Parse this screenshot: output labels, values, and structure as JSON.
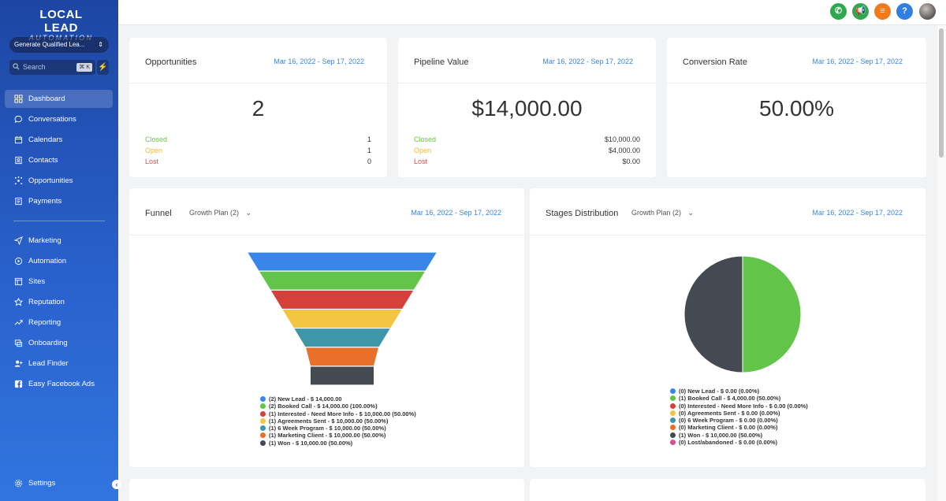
{
  "brand": {
    "line1": "LOCAL LEAD",
    "line2": "AUTOMATION"
  },
  "account": {
    "name": "Generate Qualified Lea..."
  },
  "search": {
    "placeholder": "Search",
    "shortcut": "⌘ K"
  },
  "nav": {
    "items": [
      {
        "label": "Dashboard",
        "icon": "grid-icon",
        "active": true
      },
      {
        "label": "Conversations",
        "icon": "chat-icon"
      },
      {
        "label": "Calendars",
        "icon": "calendar-icon"
      },
      {
        "label": "Contacts",
        "icon": "contacts-icon"
      },
      {
        "label": "Opportunities",
        "icon": "opportunities-icon"
      },
      {
        "label": "Payments",
        "icon": "payments-icon"
      },
      {
        "label": "Marketing",
        "icon": "send-icon"
      },
      {
        "label": "Automation",
        "icon": "automation-icon"
      },
      {
        "label": "Sites",
        "icon": "sites-icon"
      },
      {
        "label": "Reputation",
        "icon": "star-icon"
      },
      {
        "label": "Reporting",
        "icon": "trend-icon"
      },
      {
        "label": "Onboarding",
        "icon": "onboarding-icon"
      },
      {
        "label": "Lead Finder",
        "icon": "add-user-icon"
      },
      {
        "label": "Easy Facebook Ads",
        "icon": "facebook-icon"
      }
    ],
    "settings": "Settings"
  },
  "header": {
    "buttons": [
      {
        "name": "phone-icon",
        "color": "#2fa84f",
        "glyph": "✆"
      },
      {
        "name": "megaphone-icon",
        "color": "#2fa84f",
        "glyph": "📢"
      },
      {
        "name": "task-list-icon",
        "color": "#f27a1a",
        "glyph": "≡"
      },
      {
        "name": "help-icon",
        "color": "#2f7fe0",
        "glyph": "?"
      }
    ]
  },
  "opportunities": {
    "title": "Opportunities",
    "date": "Mar 16, 2022 - Sep 17, 2022",
    "value": "2",
    "rows": [
      {
        "label": "Closed",
        "value": "1",
        "color": "#6cc644"
      },
      {
        "label": "Open",
        "value": "1",
        "color": "#f2b829"
      },
      {
        "label": "Lost",
        "value": "0",
        "color": "#d9534f"
      }
    ]
  },
  "pipeline": {
    "title": "Pipeline Value",
    "date": "Mar 16, 2022 - Sep 17, 2022",
    "value": "$14,000.00",
    "rows": [
      {
        "label": "Closed",
        "value": "$10,000.00",
        "color": "#6cc644"
      },
      {
        "label": "Open",
        "value": "$4,000.00",
        "color": "#f2b829"
      },
      {
        "label": "Lost",
        "value": "$0.00",
        "color": "#d9534f"
      }
    ]
  },
  "conversion": {
    "title": "Conversion Rate",
    "date": "Mar 16, 2022 - Sep 17, 2022",
    "value": "50.00%"
  },
  "funnel": {
    "title": "Funnel",
    "dropdown": "Growth Plan (2)",
    "date": "Mar 16, 2022 - Sep 17, 2022",
    "legend": [
      {
        "text": "(2) New Lead - $ 14,000.00",
        "color": "#3a86e8"
      },
      {
        "text": "(2) Booked Call - $ 14,000.00 (100.00%)",
        "color": "#62c54a"
      },
      {
        "text": "(1) Interested - Need More Info - $ 10,000.00 (50.00%)",
        "color": "#d6403a"
      },
      {
        "text": "(1) Agreements Sent - $ 10,000.00 (50.00%)",
        "color": "#f4c542"
      },
      {
        "text": "(1) 6 Week Program - $ 10,000.00 (50.00%)",
        "color": "#3d97a8"
      },
      {
        "text": "(1) Marketing Client - $ 10,000.00 (50.00%)",
        "color": "#e8702a"
      },
      {
        "text": "(1) Won - $ 10,000.00 (50.00%)",
        "color": "#454a52"
      }
    ]
  },
  "stages": {
    "title": "Stages Distribution",
    "dropdown": "Growth Plan (2)",
    "date": "Mar 16, 2022 - Sep 17, 2022",
    "legend": [
      {
        "text": "(0) New Lead - $ 0.00 (0.00%)",
        "color": "#3a86e8"
      },
      {
        "text": "(1) Booked Call - $ 4,000.00 (50.00%)",
        "color": "#62c54a"
      },
      {
        "text": "(0) Interested - Need More Info - $ 0.00 (0.00%)",
        "color": "#d6403a"
      },
      {
        "text": "(0) Agreements Sent - $ 0.00 (0.00%)",
        "color": "#f4c542"
      },
      {
        "text": "(0) 6 Week Program - $ 0.00 (0.00%)",
        "color": "#3d97a8"
      },
      {
        "text": "(0) Marketing Client - $ 0.00 (0.00%)",
        "color": "#e8702a"
      },
      {
        "text": "(1) Won - $ 10,000.00 (50.00%)",
        "color": "#454a52"
      },
      {
        "text": "(0) Lost/abandoned - $ 0.00 (0.00%)",
        "color": "#d94f8f"
      }
    ]
  },
  "chart_data": [
    {
      "type": "funnel",
      "categories": [
        "New Lead",
        "Booked Call",
        "Interested - Need More Info",
        "Agreements Sent",
        "6 Week Program",
        "Marketing Client",
        "Won"
      ],
      "values": [
        14000,
        14000,
        10000,
        10000,
        10000,
        10000,
        10000
      ],
      "counts": [
        2,
        2,
        1,
        1,
        1,
        1,
        1
      ],
      "colors": [
        "#3a86e8",
        "#62c54a",
        "#d6403a",
        "#f4c542",
        "#3d97a8",
        "#e8702a",
        "#454a52"
      ]
    },
    {
      "type": "pie",
      "categories": [
        "Booked Call",
        "Won"
      ],
      "values": [
        50,
        50
      ],
      "colors": [
        "#62c54a",
        "#454a52"
      ]
    }
  ]
}
